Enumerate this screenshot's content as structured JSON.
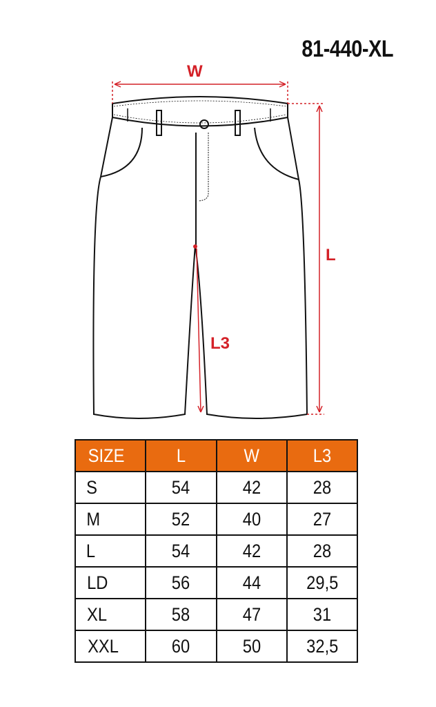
{
  "product_code": "81-440-XL",
  "diagram": {
    "labels": {
      "waist": "W",
      "length": "L",
      "inseam": "L3"
    },
    "measure_color": "#d42027"
  },
  "table": {
    "header_color": "#e96b10",
    "headers": [
      "SIZE",
      "L",
      "W",
      "L3"
    ],
    "rows": [
      [
        "S",
        "54",
        "42",
        "28"
      ],
      [
        "M",
        "52",
        "40",
        "27"
      ],
      [
        "L",
        "54",
        "42",
        "28"
      ],
      [
        "LD",
        "56",
        "44",
        "29,5"
      ],
      [
        "XL",
        "58",
        "47",
        "31"
      ],
      [
        "XXL",
        "60",
        "50",
        "32,5"
      ]
    ]
  }
}
